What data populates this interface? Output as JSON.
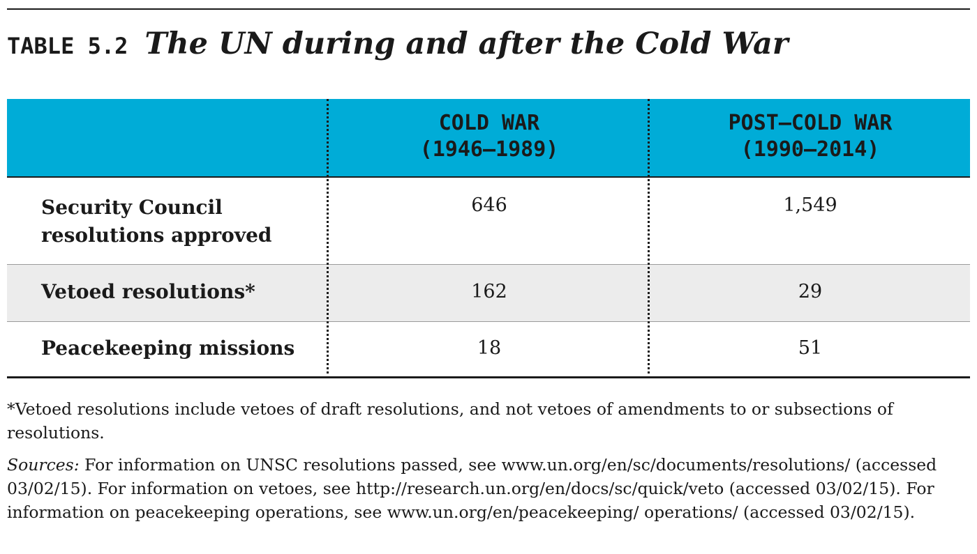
{
  "table": {
    "label": "TABLE 5.2",
    "title": "The UN during and after the Cold War",
    "columns": [
      {
        "line1": "COLD WAR",
        "line2": "(1946–1989)"
      },
      {
        "line1": "POST–COLD WAR",
        "line2": "(1990–2014)"
      }
    ],
    "rows": [
      {
        "label_line1": "Security Council",
        "label_line2": "resolutions approved",
        "cold_war": "646",
        "post_cold_war": "1,549"
      },
      {
        "label": "Vetoed resolutions*",
        "cold_war": "162",
        "post_cold_war": "29"
      },
      {
        "label": "Peacekeeping missions",
        "cold_war": "18",
        "post_cold_war": "51"
      }
    ]
  },
  "notes": {
    "footnote": "*Vetoed resolutions include vetoes of draft resolutions, and not vetoes of amendments to or subsections of resolutions.",
    "sources_label": "Sources:",
    "sources_text": " For information on UNSC resolutions passed, see www.un.org/en/sc/documents/resolutions/ (accessed 03/02/15). For information on vetoes, see http://research.un.org/en/docs/sc/quick/veto (accessed 03/02/15). For information on peacekeeping operations, see www.un.org/en/peacekeeping/ operations/ (accessed 03/02/15)."
  },
  "colors": {
    "header_bg": "#00acd7",
    "shaded_row_bg": "#ececec",
    "text": "#1a1a1a"
  }
}
